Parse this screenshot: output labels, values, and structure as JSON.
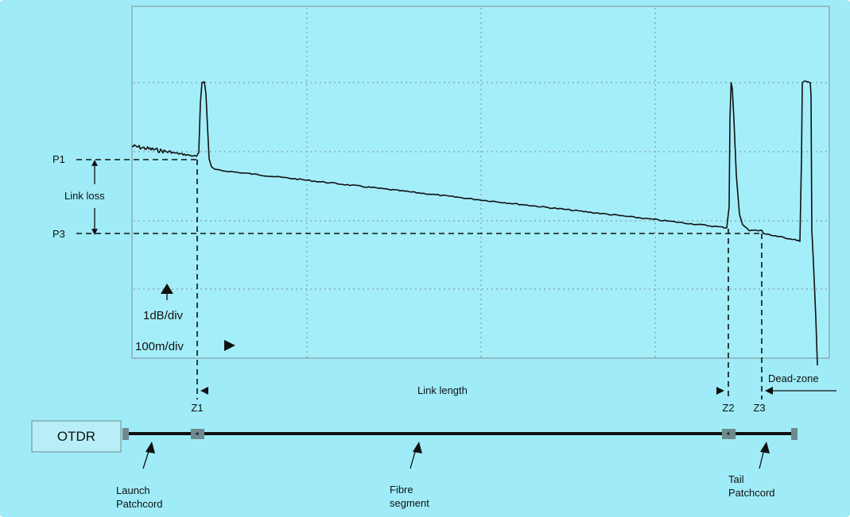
{
  "colors": {
    "background": "#9fecf8",
    "screen": "#a4eef9",
    "text": "#111111",
    "connector": "#6f8a8c",
    "otdr_box": "#b8eef5"
  },
  "labels": {
    "p1": "P1",
    "p3": "P3",
    "link_loss": "Link loss",
    "db_per_div": "1dB/div",
    "m_per_div": "100m/div",
    "z1": "Z1",
    "z2": "Z2",
    "z3": "Z3",
    "link_length": "Link length",
    "dead_zone": "Dead-zone",
    "otdr": "OTDR",
    "launch_1": "Launch",
    "launch_2": "Patchcord",
    "fibre_1": "Fibre",
    "fibre_2": "segment",
    "tail_1": "Tail",
    "tail_2": "Patchcord"
  }
}
